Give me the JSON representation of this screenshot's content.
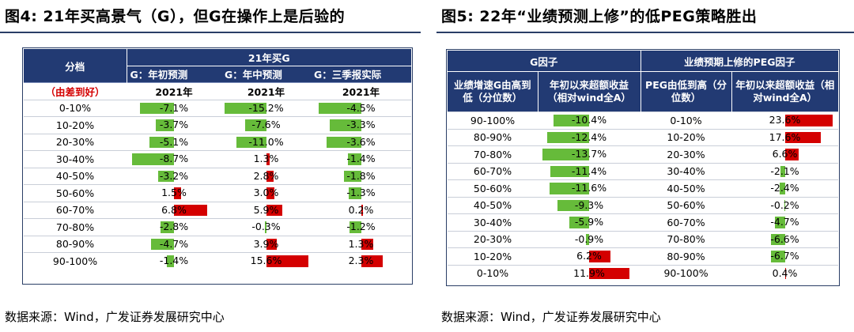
{
  "left": {
    "title": "图4:  21年买高景气（G），但G在操作上是后验的",
    "source": "数据来源：Wind，广发证券发展研究中心",
    "headers": {
      "group_label": "分档",
      "group_title": "21年买G",
      "sort_note": "（由差到好）",
      "cols": [
        "G：年初预测",
        "G：年中预测",
        "G：三季报实际"
      ],
      "years": [
        "2021年",
        "2021年",
        "2021年"
      ]
    },
    "rows": [
      {
        "label": "0-10%",
        "v": [
          -7.1,
          -15.2,
          -4.5
        ],
        "t": [
          "-7.1%",
          "-15.2%",
          "-4.5%"
        ]
      },
      {
        "label": "10-20%",
        "v": [
          -3.7,
          -7.6,
          -3.3
        ],
        "t": [
          "-3.7%",
          "-7.6%",
          "-3.3%"
        ]
      },
      {
        "label": "20-30%",
        "v": [
          -5.1,
          -11.0,
          -3.6
        ],
        "t": [
          "-5.1%",
          "-11.0%",
          "-3.6%"
        ]
      },
      {
        "label": "30-40%",
        "v": [
          -8.7,
          1.3,
          -1.4
        ],
        "t": [
          "-8.7%",
          "1.3%",
          "-1.4%"
        ]
      },
      {
        "label": "40-50%",
        "v": [
          -3.2,
          2.8,
          -1.8
        ],
        "t": [
          "-3.2%",
          "2.8%",
          "-1.8%"
        ]
      },
      {
        "label": "50-60%",
        "v": [
          1.5,
          3.0,
          -1.3
        ],
        "t": [
          "1.5%",
          "3.0%",
          "-1.3%"
        ]
      },
      {
        "label": "60-70%",
        "v": [
          6.8,
          5.9,
          0.2
        ],
        "t": [
          "6.8%",
          "5.9%",
          "0.2%"
        ]
      },
      {
        "label": "70-80%",
        "v": [
          -2.8,
          -0.3,
          -1.2
        ],
        "t": [
          "-2.8%",
          "-0.3%",
          "-1.2%"
        ]
      },
      {
        "label": "80-90%",
        "v": [
          -4.7,
          3.9,
          1.3
        ],
        "t": [
          "-4.7%",
          "3.9%",
          "1.3%"
        ]
      },
      {
        "label": "90-100%",
        "v": [
          -1.4,
          15.6,
          2.3
        ],
        "t": [
          "-1.4%",
          "15.6%",
          "2.3%"
        ]
      }
    ]
  },
  "right": {
    "title": "图5:  22年“业绩预测上修”的低PEG策略胜出",
    "source": "数据来源：Wind，广发证券发展研究中心",
    "headers": {
      "group1": "G因子",
      "group2": "业绩预期上修的PEG因子",
      "c1": "业绩增速G由高到低（分位数）",
      "c2": "年初以来超额收益（相对wind全A）",
      "c3": "PEG由低到高（分位数）",
      "c4": "年初以来超额收益（相对wind全A）"
    },
    "rows": [
      {
        "g": "90-100%",
        "gv": -10.4,
        "gt": "-10.4%",
        "p": "0-10%",
        "pv": 23.6,
        "pt": "23.6%"
      },
      {
        "g": "80-90%",
        "gv": -12.4,
        "gt": "-12.4%",
        "p": "10-20%",
        "pv": 17.6,
        "pt": "17.6%"
      },
      {
        "g": "70-80%",
        "gv": -13.7,
        "gt": "-13.7%",
        "p": "20-30%",
        "pv": 6.6,
        "pt": "6.6%"
      },
      {
        "g": "60-70%",
        "gv": -11.4,
        "gt": "-11.4%",
        "p": "30-40%",
        "pv": -2.1,
        "pt": "-2.1%"
      },
      {
        "g": "50-60%",
        "gv": -11.6,
        "gt": "-11.6%",
        "p": "40-50%",
        "pv": -2.4,
        "pt": "-2.4%"
      },
      {
        "g": "40-50%",
        "gv": -9.3,
        "gt": "-9.3%",
        "p": "50-60%",
        "pv": -0.2,
        "pt": "-0.2%"
      },
      {
        "g": "30-40%",
        "gv": -5.9,
        "gt": "-5.9%",
        "p": "60-70%",
        "pv": -4.7,
        "pt": "-4.7%"
      },
      {
        "g": "20-30%",
        "gv": -0.9,
        "gt": "-0.9%",
        "p": "70-80%",
        "pv": -6.6,
        "pt": "-6.6%"
      },
      {
        "g": "10-20%",
        "gv": 6.2,
        "gt": "6.2%",
        "p": "80-90%",
        "pv": -6.7,
        "pt": "-6.7%"
      },
      {
        "g": "0-10%",
        "gv": 11.9,
        "gt": "11.9%",
        "p": "90-100%",
        "pv": 0.4,
        "pt": "0.4%"
      }
    ]
  },
  "colors": {
    "header_bg": "#223a73",
    "positive": "#d40000",
    "negative": "#66bb3a",
    "note": "#d40000"
  }
}
